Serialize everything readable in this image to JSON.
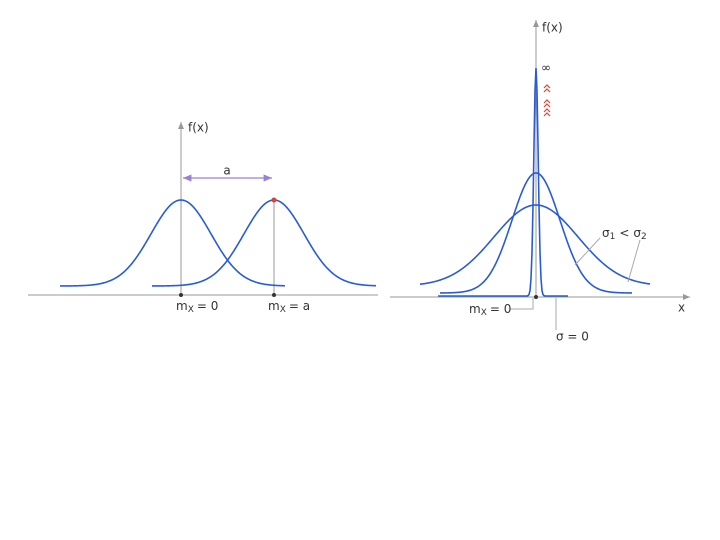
{
  "left_panel": {
    "y_axis_label": "f(x)",
    "shift_label": "a",
    "mean_labels": [
      {
        "symbol": "m",
        "subscript": "X",
        "equation": "= 0"
      },
      {
        "symbol": "m",
        "subscript": "X",
        "equation": "= a"
      }
    ]
  },
  "right_panel": {
    "y_axis_label": "f(x)",
    "x_axis_label": "x",
    "infinity_label": "∞",
    "sigma_comparison": {
      "sigma1": "σ",
      "sub1": "1",
      "relation": "<",
      "sigma2": "σ",
      "sub2": "2"
    },
    "mean_label": {
      "symbol": "m",
      "subscript": "X",
      "equation": "= 0"
    },
    "zero_sigma_label": "σ = 0"
  }
}
